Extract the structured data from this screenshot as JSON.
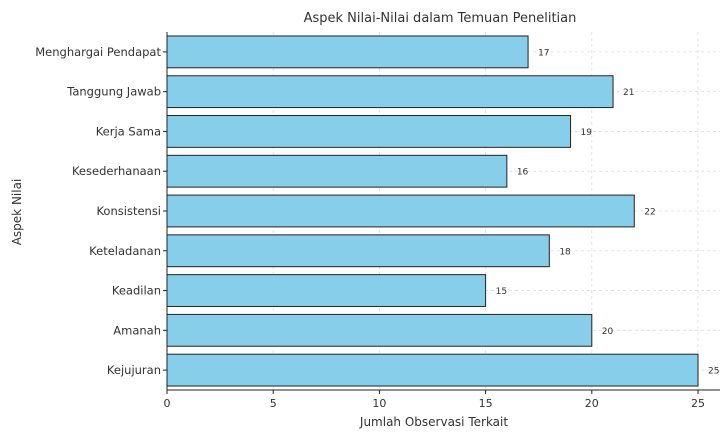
{
  "chart_data": {
    "type": "bar",
    "orientation": "horizontal",
    "title": "Aspek Nilai-Nilai dalam Temuan Penelitian",
    "xlabel": "Jumlah Observasi Terkait",
    "ylabel": "Aspek Nilai",
    "categories": [
      "Menghargai Pendapat",
      "Tanggung Jawab",
      "Kerja Sama",
      "Kesederhanaan",
      "Konsistensi",
      "Keteladanan",
      "Keadilan",
      "Amanah",
      "Kejujuran"
    ],
    "values": [
      17,
      21,
      19,
      16,
      22,
      18,
      15,
      20,
      25
    ],
    "xlim": [
      0,
      25.9
    ],
    "xticks": [
      0,
      5,
      10,
      15,
      20,
      25
    ],
    "grid": true,
    "data_labels": true,
    "bar_color": "#87CEEB",
    "bar_edge_color": "#222222"
  }
}
